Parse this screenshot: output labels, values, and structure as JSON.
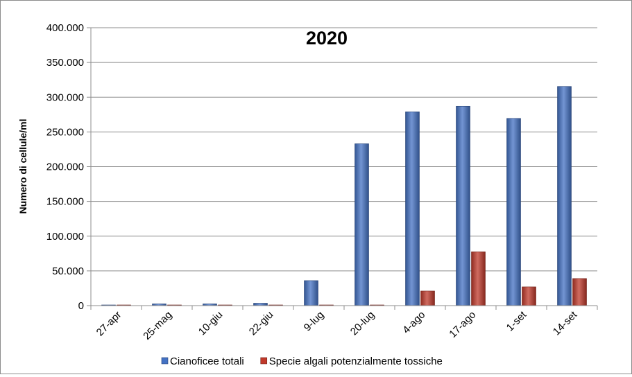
{
  "chart_data": {
    "type": "bar",
    "title": "2020",
    "xlabel": "",
    "ylabel": "Numero di cellule/ml",
    "categories": [
      "27-apr",
      "25-mag",
      "10-giu",
      "22-giu",
      "9-lug",
      "20-lug",
      "4-ago",
      "17-ago",
      "1-set",
      "14-set"
    ],
    "series": [
      {
        "name": "Cianoficee totali",
        "color": "#4472C4",
        "values": [
          500,
          2500,
          2500,
          3500,
          36000,
          233000,
          279000,
          287000,
          269500,
          315500
        ]
      },
      {
        "name": "Specie algali potenzialmente tossiche",
        "color": "#C0392B",
        "values": [
          300,
          300,
          300,
          500,
          500,
          500,
          21000,
          77500,
          27000,
          39000
        ]
      }
    ],
    "ylim": [
      0,
      400000
    ],
    "yticks": [
      "0",
      "50.000",
      "100.000",
      "150.000",
      "200.000",
      "250.000",
      "300.000",
      "350.000",
      "400.000"
    ],
    "grid": true,
    "legend_position": "bottom"
  }
}
